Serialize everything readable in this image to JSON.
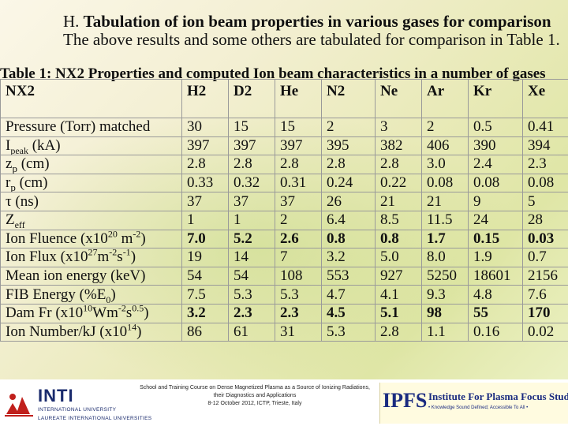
{
  "heading": {
    "number": "H.",
    "title": "Tabulation of ion beam properties in various gases for comparison",
    "subtitle": "The above results and some others are tabulated for comparison in Table 1."
  },
  "table": {
    "caption": "Table 1: NX2 Properties and computed Ion beam characteristics in a number of gases",
    "corner": "NX2",
    "gases": [
      "H2",
      "D2",
      "He",
      "N2",
      "Ne",
      "Ar",
      "Kr",
      "Xe"
    ],
    "rows": [
      {
        "label": "Pressure (Torr) matched",
        "values": [
          "30",
          "15",
          "15",
          "2",
          "3",
          "2",
          "0.5",
          "0.41"
        ],
        "bold": false
      },
      {
        "label": "Ipeak (kA)",
        "values": [
          "397",
          "397",
          "397",
          "395",
          "382",
          "406",
          "390",
          "394"
        ],
        "bold": false
      },
      {
        "label": "zp (cm)",
        "values": [
          "2.8",
          "2.8",
          "2.8",
          "2.8",
          "2.8",
          "3.0",
          "2.4",
          "2.3"
        ],
        "bold": false
      },
      {
        "label": "rp (cm)",
        "values": [
          "0.33",
          "0.32",
          "0.31",
          "0.24",
          "0.22",
          "0.08",
          "0.08",
          "0.08"
        ],
        "bold": false
      },
      {
        "label": "τ (ns)",
        "values": [
          "37",
          "37",
          "37",
          "26",
          "21",
          "21",
          "9",
          "5"
        ],
        "bold": false
      },
      {
        "label": "Zeff",
        "values": [
          "1",
          "1",
          "2",
          "6.4",
          "8.5",
          "11.5",
          "24",
          "28"
        ],
        "bold": false
      },
      {
        "label": "Ion Fluence (x1020 m-2)",
        "values": [
          "7.0",
          "5.2",
          "2.6",
          "0.8",
          "0.8",
          "1.7",
          "0.15",
          "0.03"
        ],
        "bold": true
      },
      {
        "label": "Ion Flux (x1027m-2s-1)",
        "values": [
          "19",
          "14",
          "7",
          "3.2",
          "5.0",
          "8.0",
          "1.9",
          "0.7"
        ],
        "bold": false
      },
      {
        "label": "Mean ion energy (keV)",
        "values": [
          "54",
          "54",
          "108",
          "553",
          "927",
          "5250",
          "18601",
          "2156"
        ],
        "bold": false
      },
      {
        "label": "FIB Energy (%E0)",
        "values": [
          "7.5",
          "5.3",
          "5.3",
          "4.7",
          "4.1",
          "9.3",
          "4.8",
          "7.6"
        ],
        "bold": false
      },
      {
        "label": "Dam Fr (x1010Wm-2s0.5)",
        "values": [
          "3.2",
          "2.3",
          "2.3",
          "4.5",
          "5.1",
          "98",
          "55",
          "170"
        ],
        "bold": true
      },
      {
        "label": "Ion Number/kJ (x1014)",
        "values": [
          "86",
          "61",
          "31",
          "5.3",
          "2.8",
          "1.1",
          "0.16",
          "0.02"
        ],
        "bold": false
      }
    ]
  },
  "footer": {
    "inti_name": "INTI",
    "inti_sub1": "INTERNATIONAL UNIVERSITY",
    "inti_sub2": "LAUREATE INTERNATIONAL UNIVERSITIES",
    "event_line1": "School and Training Course on Dense Magnetized Plasma as a Source of Ionizing Radiations,",
    "event_line2": "their Diagnostics and Applications",
    "event_line3": "8-12 October 2012, ICTP, Trieste, Italy",
    "ipfs_logo": "IPFS",
    "ipfs_name": "Institute For Plasma Focus Studies",
    "ipfs_tag": "• Knowledge Sound Defined; Accessible To All •",
    "colors": {
      "inti_blue": "#1a2b6d",
      "inti_red": "#c0201c",
      "ipfs_blue": "#1a2b80"
    }
  }
}
